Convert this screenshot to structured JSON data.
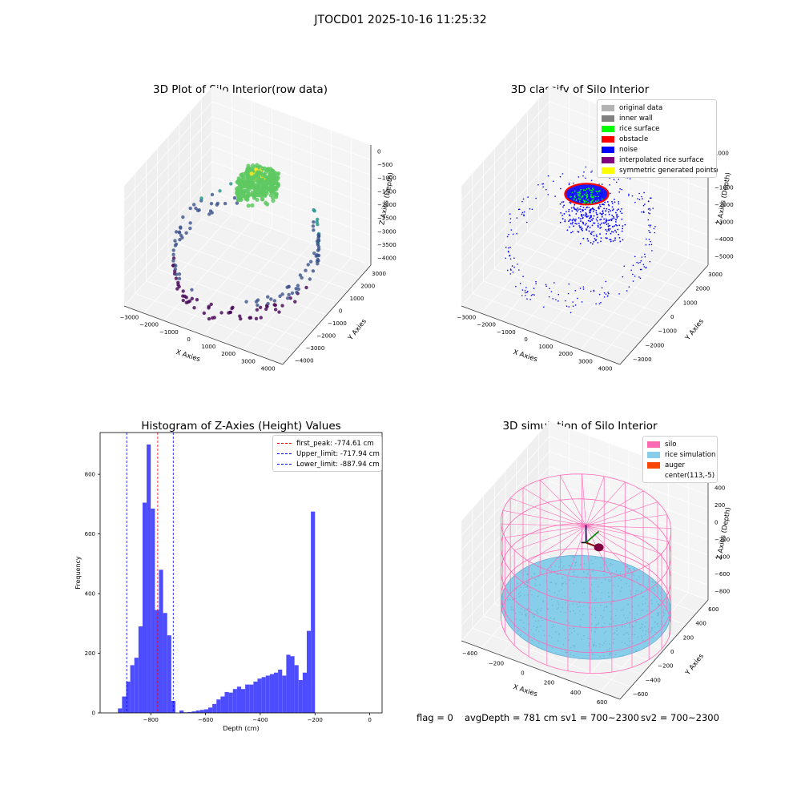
{
  "figure_title": "JTOCD01 2025-10-16 11:25:32",
  "status_line": {
    "flag": "flag = 0",
    "avg_depth": "avgDepth = 781 cm",
    "sv1": "sv1 = 700~2300",
    "sv2": "sv2 = 700~2300"
  },
  "chart_data": [
    {
      "id": "raw",
      "type": "scatter",
      "title": "3D Plot of Silo Interior(row data)",
      "xlabel": "X Axies",
      "ylabel": "Y Axies",
      "zlabel": "Z Axies (Depth)",
      "xlim": [
        -3300,
        4500
      ],
      "ylim": [
        -4000,
        3500
      ],
      "zlim": [
        -4200,
        300
      ],
      "x_ticks": [
        "−3000",
        "−2000",
        "−1000",
        "0",
        "1000",
        "2000",
        "3000",
        "4000"
      ],
      "y_ticks": [
        "−4000",
        "−3000",
        "−2000",
        "−1000",
        "0",
        "1000",
        "2000",
        "3000"
      ],
      "z_ticks": [
        "0",
        "−500",
        "−1000",
        "−1500",
        "−2000",
        "−2500",
        "−3000",
        "−3500",
        "−4000"
      ],
      "colormap": "viridis (by depth)",
      "groups": [
        {
          "desc": "rice surface cluster",
          "cx": 500,
          "cy": 800,
          "cz": -700,
          "rx": 900,
          "ry": 1000,
          "rz": 150,
          "n": 350
        },
        {
          "desc": "inner wall ring",
          "r": 3100,
          "cx": 500,
          "cy": -200,
          "zmin": -4000,
          "zmax": -1500,
          "n": 160
        }
      ]
    },
    {
      "id": "classify",
      "type": "scatter",
      "title": "3D classify of Silo Interior",
      "xlabel": "X Axies",
      "ylabel": "Y Axies",
      "zlabel": "Z Axies (Depth)",
      "xlim": [
        -3300,
        4500
      ],
      "ylim": [
        -3500,
        3500
      ],
      "zlim": [
        -5500,
        1200
      ],
      "x_ticks": [
        "−3000",
        "−2000",
        "−1000",
        "0",
        "1000",
        "2000",
        "3000",
        "4000"
      ],
      "y_ticks": [
        "−3000",
        "−2000",
        "−1000",
        "0",
        "1000",
        "2000",
        "3000"
      ],
      "z_ticks": [
        "1000",
        "0",
        "−1000",
        "−2000",
        "−3000",
        "−4000",
        "−5000"
      ],
      "legend": [
        {
          "label": "original data",
          "color": "#b3b3b3"
        },
        {
          "label": "inner wall",
          "color": "#808080"
        },
        {
          "label": "rice surface",
          "color": "#00ff00"
        },
        {
          "label": "obstacle",
          "color": "#ff0000"
        },
        {
          "label": "noise",
          "color": "#0000ff"
        },
        {
          "label": "interpolated rice surface",
          "color": "#800080"
        },
        {
          "label": "symmetric generated points",
          "color": "#ffff00"
        }
      ]
    },
    {
      "id": "hist",
      "type": "bar",
      "title": "Histogram of Z-Axies (Height) Values",
      "xlabel": "Depth (cm)",
      "ylabel": "Frequency",
      "xlim": [
        -985,
        45
      ],
      "ylim": [
        0,
        940
      ],
      "x_ticks": [
        -800,
        -600,
        -400,
        -200,
        0
      ],
      "x_tick_labels": [
        "−800",
        "−600",
        "−400",
        "−200",
        "0"
      ],
      "y_ticks": [
        0,
        200,
        400,
        600,
        800
      ],
      "bin_width": 15,
      "bins_start": -920,
      "values": [
        15,
        55,
        105,
        160,
        185,
        290,
        705,
        900,
        685,
        345,
        480,
        335,
        260,
        40,
        0,
        8,
        2,
        3,
        5,
        8,
        10,
        12,
        18,
        30,
        45,
        55,
        70,
        68,
        80,
        88,
        80,
        95,
        95,
        105,
        115,
        120,
        125,
        130,
        135,
        145,
        125,
        195,
        190,
        160,
        110,
        135,
        275,
        675
      ],
      "bar_color": "#4d4dff",
      "lines": [
        {
          "label": "first_peak: -774.61 cm",
          "x": -774.61,
          "color": "#ff0000"
        },
        {
          "label": "Upper_limit: -717.94 cm",
          "x": -717.94,
          "color": "#0000ff"
        },
        {
          "label": "Lower_limit: -887.94 cm",
          "x": -887.94,
          "color": "#0000ff"
        }
      ]
    },
    {
      "id": "sim",
      "type": "scatter",
      "title": "3D simulation of Silo Interior",
      "xlabel": "X Axies",
      "ylabel": "Y Axies",
      "zlabel": "Z Axies (Depth)",
      "xlim": [
        -550,
        750
      ],
      "ylim": [
        -700,
        700
      ],
      "zlim": [
        -950,
        500
      ],
      "x_ticks": [
        "−400",
        "−200",
        "0",
        "200",
        "400",
        "600"
      ],
      "y_ticks": [
        "−600",
        "−400",
        "−200",
        "0",
        "200",
        "400",
        "600"
      ],
      "z_ticks": [
        "400",
        "200",
        "0",
        "−200",
        "−400",
        "−600",
        "−800"
      ],
      "silo": {
        "cx": 113,
        "cy": -5,
        "r": 620,
        "ztop": 200,
        "zbot": -950
      },
      "rice_surface_depth": -781,
      "legend": [
        {
          "label": "silo",
          "color": "#ff69b4"
        },
        {
          "label": "rice simulation",
          "color": "#87ceeb"
        },
        {
          "label": "auger",
          "color": "#ff4500"
        },
        {
          "label": "center(113,-5)",
          "color": "#ffffff"
        }
      ]
    }
  ]
}
